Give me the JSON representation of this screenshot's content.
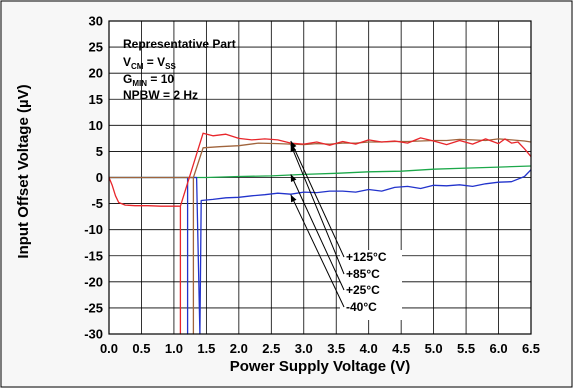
{
  "chart_data": {
    "type": "line",
    "title": "",
    "xlabel": "Power Supply Voltage (V)",
    "ylabel": "Input Offset Voltage (µV)",
    "xlim": [
      0,
      6.5
    ],
    "ylim": [
      -30,
      30
    ],
    "x_ticks": [
      "0.0",
      "0.5",
      "1.0",
      "1.5",
      "2.0",
      "2.5",
      "3.0",
      "3.5",
      "4.0",
      "4.5",
      "5.0",
      "5.5",
      "6.0",
      "6.5"
    ],
    "y_ticks": [
      "30",
      "25",
      "20",
      "15",
      "10",
      "5",
      "0",
      "-5",
      "-10",
      "-15",
      "-20",
      "-25",
      "-30"
    ],
    "grid": true,
    "annotation": {
      "line1": "Representative Part",
      "line2_main": "V",
      "line2_sub": "CM",
      "line2_mid": " = V",
      "line2_sub2": "SS",
      "line3_main": "G",
      "line3_sub": "MIN",
      "line3_rest": " = 10",
      "line4": "NPBW = 2 Hz"
    },
    "legend_labels": [
      "+125°C",
      "+85°C",
      "+25°C",
      "-40°C"
    ],
    "series": [
      {
        "name": "+125°C",
        "color": "#e8262b",
        "points": [
          [
            0,
            0
          ],
          [
            0.05,
            -1.5
          ],
          [
            0.1,
            -3.5
          ],
          [
            0.15,
            -4.8
          ],
          [
            0.25,
            -5.3
          ],
          [
            0.4,
            -5.4
          ],
          [
            0.6,
            -5.4
          ],
          [
            0.8,
            -5.5
          ],
          [
            1.0,
            -5.5
          ],
          [
            1.1,
            -5.5
          ],
          [
            1.1,
            -30
          ],
          [
            1.1,
            -5.5
          ],
          [
            1.45,
            8.5
          ],
          [
            1.6,
            8.0
          ],
          [
            1.8,
            8.3
          ],
          [
            2.0,
            7.5
          ],
          [
            2.2,
            7.2
          ],
          [
            2.4,
            7.4
          ],
          [
            2.6,
            7.2
          ],
          [
            2.8,
            6.6
          ],
          [
            3.0,
            6.4
          ],
          [
            3.2,
            6.8
          ],
          [
            3.4,
            6.2
          ],
          [
            3.6,
            6.9
          ],
          [
            3.8,
            6.4
          ],
          [
            4.0,
            7.2
          ],
          [
            4.2,
            6.8
          ],
          [
            4.4,
            7.0
          ],
          [
            4.6,
            6.6
          ],
          [
            4.8,
            7.6
          ],
          [
            5.0,
            7.0
          ],
          [
            5.2,
            6.3
          ],
          [
            5.4,
            7.1
          ],
          [
            5.6,
            6.4
          ],
          [
            5.8,
            7.4
          ],
          [
            6.0,
            6.5
          ],
          [
            6.1,
            7.4
          ],
          [
            6.2,
            6.6
          ],
          [
            6.3,
            6.8
          ],
          [
            6.4,
            5.5
          ],
          [
            6.5,
            4.0
          ]
        ]
      },
      {
        "name": "+85°C",
        "color": "#a0643c",
        "points": [
          [
            0,
            0
          ],
          [
            0.5,
            0
          ],
          [
            1.0,
            0
          ],
          [
            1.3,
            0
          ],
          [
            1.3,
            -30
          ],
          [
            1.3,
            0
          ],
          [
            1.45,
            5.7
          ],
          [
            1.7,
            5.9
          ],
          [
            2.0,
            6.1
          ],
          [
            2.3,
            6.6
          ],
          [
            2.6,
            6.5
          ],
          [
            2.8,
            6.4
          ],
          [
            3.0,
            6.3
          ],
          [
            3.2,
            6.5
          ],
          [
            3.4,
            6.4
          ],
          [
            3.6,
            6.6
          ],
          [
            3.8,
            6.6
          ],
          [
            4.0,
            6.8
          ],
          [
            4.2,
            6.8
          ],
          [
            4.4,
            6.9
          ],
          [
            4.6,
            6.9
          ],
          [
            4.8,
            7.0
          ],
          [
            5.0,
            7.1
          ],
          [
            5.2,
            7.1
          ],
          [
            5.4,
            7.3
          ],
          [
            5.6,
            7.2
          ],
          [
            5.8,
            7.1
          ],
          [
            6.0,
            7.4
          ],
          [
            6.2,
            7.2
          ],
          [
            6.4,
            7.0
          ],
          [
            6.5,
            6.8
          ]
        ]
      },
      {
        "name": "+25°C",
        "color": "#1ca84a",
        "points": [
          [
            0,
            0
          ],
          [
            0.5,
            0
          ],
          [
            1.0,
            0
          ],
          [
            1.5,
            0
          ],
          [
            2.0,
            0.2
          ],
          [
            2.5,
            0.3
          ],
          [
            3.0,
            0.6
          ],
          [
            3.5,
            0.8
          ],
          [
            4.0,
            1.1
          ],
          [
            4.5,
            1.2
          ],
          [
            5.0,
            1.6
          ],
          [
            5.5,
            1.8
          ],
          [
            6.0,
            2.0
          ],
          [
            6.5,
            2.2
          ]
        ]
      },
      {
        "name": "-40°C",
        "color": "#2233cc",
        "points": [
          [
            0,
            0
          ],
          [
            0.5,
            0
          ],
          [
            1.0,
            0
          ],
          [
            1.21,
            0
          ],
          [
            1.21,
            -30
          ],
          [
            1.21,
            0
          ],
          [
            1.35,
            0
          ],
          [
            1.4,
            -30
          ],
          [
            1.42,
            -4.4
          ],
          [
            1.6,
            -4.2
          ],
          [
            1.8,
            -3.9
          ],
          [
            2.0,
            -3.8
          ],
          [
            2.2,
            -3.5
          ],
          [
            2.4,
            -3.3
          ],
          [
            2.6,
            -3.0
          ],
          [
            2.8,
            -3.2
          ],
          [
            3.0,
            -2.8
          ],
          [
            3.2,
            -2.9
          ],
          [
            3.4,
            -2.6
          ],
          [
            3.6,
            -2.6
          ],
          [
            3.8,
            -2.8
          ],
          [
            4.0,
            -2.3
          ],
          [
            4.2,
            -2.6
          ],
          [
            4.4,
            -1.9
          ],
          [
            4.6,
            -1.7
          ],
          [
            4.8,
            -2.1
          ],
          [
            5.0,
            -1.5
          ],
          [
            5.2,
            -1.6
          ],
          [
            5.4,
            -1.4
          ],
          [
            5.6,
            -1.7
          ],
          [
            5.8,
            -1.2
          ],
          [
            6.0,
            -0.9
          ],
          [
            6.2,
            -0.8
          ],
          [
            6.4,
            0.2
          ],
          [
            6.5,
            1.5
          ]
        ]
      }
    ],
    "arrow_targets": [
      [
        2.8,
        7.0
      ],
      [
        2.8,
        6.3
      ],
      [
        2.8,
        0.6
      ],
      [
        2.8,
        -3.3
      ]
    ]
  }
}
